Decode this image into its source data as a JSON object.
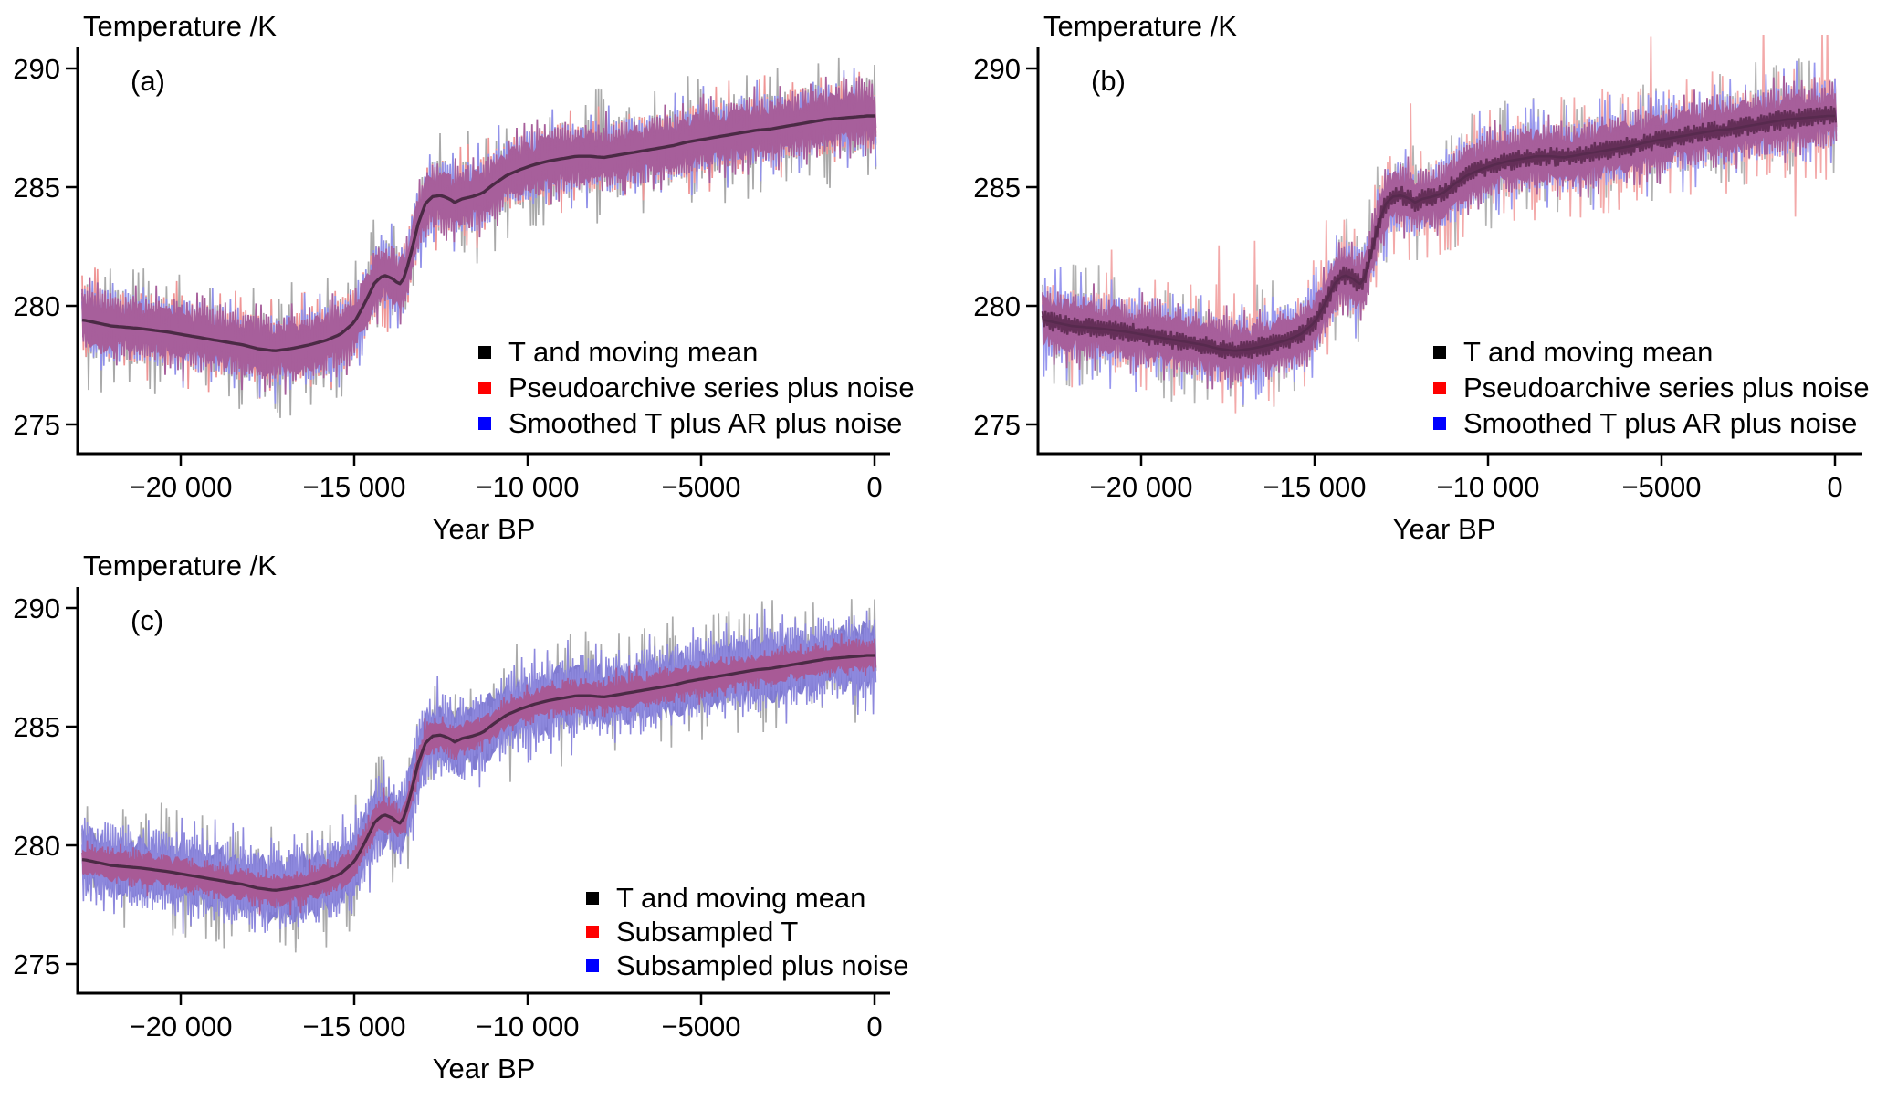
{
  "figure": {
    "background": "#ffffff",
    "text_color": "#000000",
    "panels": [
      {
        "panel_label": "(a)",
        "title": "Temperature /K",
        "xlabel": "Year BP",
        "y_tick_labels": [
          "290",
          "285",
          "280",
          "275"
        ],
        "x_tick_labels": [
          "−20 000",
          "−15 000",
          "−10 000",
          "−5000",
          "0"
        ],
        "legend": [
          {
            "label": "T and moving mean",
            "color": "#000000"
          },
          {
            "label": "Pseudoarchive series plus noise",
            "color": "#ff0000"
          },
          {
            "label": "Smoothed T plus AR plus noise",
            "color": "#0000ff"
          }
        ]
      },
      {
        "panel_label": "(b)",
        "title": "Temperature /K",
        "xlabel": "Year BP",
        "y_tick_labels": [
          "290",
          "285",
          "280",
          "275"
        ],
        "x_tick_labels": [
          "−20 000",
          "−15 000",
          "−10 000",
          "−5000",
          "0"
        ],
        "legend": [
          {
            "label": "T and moving mean",
            "color": "#000000"
          },
          {
            "label": "Pseudoarchive series plus noise",
            "color": "#ff0000"
          },
          {
            "label": "Smoothed T plus AR plus noise",
            "color": "#0000ff"
          }
        ]
      },
      {
        "panel_label": "(c)",
        "title": "Temperature /K",
        "xlabel": "Year BP",
        "y_tick_labels": [
          "290",
          "285",
          "280",
          "275"
        ],
        "x_tick_labels": [
          "−20 000",
          "−15 000",
          "−10 000",
          "−5000",
          "0"
        ],
        "legend": [
          {
            "label": "T and moving mean",
            "color": "#000000"
          },
          {
            "label": "Subsampled T",
            "color": "#ff0000"
          },
          {
            "label": "Subsampled plus noise",
            "color": "#0000ff"
          }
        ]
      }
    ]
  },
  "chart_data": {
    "type": "line",
    "title": "Temperature /K",
    "xlabel": "Year BP",
    "ylabel": "Temperature /K",
    "xlim": [
      -22900,
      450
    ],
    "ylim": [
      273.8,
      290.9
    ],
    "x_ticks": [
      -20000,
      -15000,
      -10000,
      -5000,
      0
    ],
    "y_ticks": [
      290,
      285,
      280,
      275
    ],
    "grid": false,
    "legend_position": "lower right inside",
    "moving_mean": {
      "x": [
        -22800,
        -22000,
        -21200,
        -20400,
        -19600,
        -18800,
        -18200,
        -17800,
        -17300,
        -16800,
        -16300,
        -15800,
        -15400,
        -15000,
        -14700,
        -14400,
        -14150,
        -13900,
        -13700,
        -13550,
        -13350,
        -13150,
        -12950,
        -12750,
        -12500,
        -12250,
        -12100,
        -11900,
        -11600,
        -11300,
        -11000,
        -10600,
        -10200,
        -9800,
        -9400,
        -9000,
        -8600,
        -8200,
        -7800,
        -7400,
        -7000,
        -6600,
        -6200,
        -5800,
        -5400,
        -5000,
        -4600,
        -4200,
        -3800,
        -3400,
        -3000,
        -2600,
        -2200,
        -1800,
        -1400,
        -1000,
        -600,
        -200,
        100
      ],
      "y": [
        279.4,
        279.15,
        279.05,
        278.9,
        278.7,
        278.5,
        278.35,
        278.2,
        278.1,
        278.2,
        278.35,
        278.55,
        278.8,
        279.3,
        280.1,
        281.0,
        281.3,
        281.15,
        280.9,
        281.2,
        282.3,
        283.5,
        284.3,
        284.6,
        284.65,
        284.5,
        284.35,
        284.5,
        284.6,
        284.75,
        285.1,
        285.5,
        285.75,
        285.95,
        286.1,
        286.2,
        286.3,
        286.3,
        286.25,
        286.35,
        286.45,
        286.55,
        286.65,
        286.75,
        286.9,
        287.0,
        287.1,
        287.2,
        287.3,
        287.4,
        287.45,
        287.55,
        287.65,
        287.75,
        287.85,
        287.9,
        287.95,
        288.0,
        288.0
      ]
    },
    "panels": [
      {
        "label": "(a)",
        "series": [
          "T and moving mean",
          "Pseudoarchive series plus noise",
          "Smoothed T plus AR plus noise"
        ],
        "layers": [
          {
            "type": "zig",
            "color": "#a9a9a9",
            "width": 1.7,
            "passes": 2,
            "amp": 1.55,
            "spike": 2.9,
            "spike_p": 0.1
          },
          {
            "type": "zig",
            "color": "#ef9595",
            "width": 1.7,
            "passes": 2,
            "amp": 1.5,
            "spike": 2.35,
            "spike_p": 0.08
          },
          {
            "type": "zig",
            "color": "#9191e9",
            "width": 1.7,
            "passes": 2,
            "amp": 1.5,
            "spike": 2.35,
            "spike_p": 0.08
          },
          {
            "type": "band",
            "color": "#a75f9b",
            "amp": 1.18
          },
          {
            "type": "zig",
            "color": "#a75f9b",
            "width": 1.8,
            "passes": 2,
            "amp": 1.38,
            "spike": 1.95,
            "spike_p": 0.12
          },
          {
            "type": "mean",
            "color": "#4b2a45",
            "width": 3.4
          }
        ]
      },
      {
        "label": "(b)",
        "series": [
          "T and moving mean",
          "Pseudoarchive series plus noise",
          "Smoothed T plus AR plus noise"
        ],
        "layers": [
          {
            "type": "zig",
            "color": "#b3b3b3",
            "width": 1.7,
            "passes": 2,
            "amp": 1.5,
            "spike": 2.7,
            "spike_p": 0.09
          },
          {
            "type": "zig",
            "color": "#f3a9a9",
            "width": 1.7,
            "passes": 2,
            "amp": 1.55,
            "spike": 2.7,
            "spike_p": 0.1,
            "big_spike": 4.8,
            "big_p": 0.01
          },
          {
            "type": "zig",
            "color": "#9797ef",
            "width": 1.7,
            "passes": 2,
            "amp": 1.5,
            "spike": 2.5,
            "spike_p": 0.08
          },
          {
            "type": "band",
            "color": "#a75f9b",
            "amp": 1.15
          },
          {
            "type": "zig",
            "color": "#a75f9b",
            "width": 1.8,
            "passes": 2,
            "amp": 1.35,
            "spike": 1.9,
            "spike_p": 0.12
          },
          {
            "type": "zigmean",
            "color": "#642f58",
            "width": 2.4,
            "passes": 2,
            "amp": 0.42
          },
          {
            "type": "mean",
            "color": "#572a4e",
            "width": 2.6
          }
        ]
      },
      {
        "label": "(c)",
        "series": [
          "T and moving mean",
          "Subsampled T",
          "Subsampled plus noise"
        ],
        "layers": [
          {
            "type": "zig",
            "color": "#ababab",
            "width": 1.7,
            "passes": 2,
            "amp": 1.35,
            "spike": 2.9,
            "spike_p": 0.12
          },
          {
            "type": "band",
            "color": "#7f7ad0",
            "amp": 1.5
          },
          {
            "type": "zig",
            "color": "#8d88dd",
            "width": 1.6,
            "passes": 2,
            "amp": 1.8,
            "spike": 2.55,
            "spike_p": 0.1
          },
          {
            "type": "band",
            "color": "#a85a96",
            "amp": 0.72
          },
          {
            "type": "zig",
            "color": "#a85a96",
            "width": 1.6,
            "passes": 1,
            "amp": 0.85,
            "spike": 1.15,
            "spike_p": 0.06
          },
          {
            "type": "mean",
            "color": "#4b2a45",
            "width": 3.3
          }
        ]
      }
    ]
  }
}
